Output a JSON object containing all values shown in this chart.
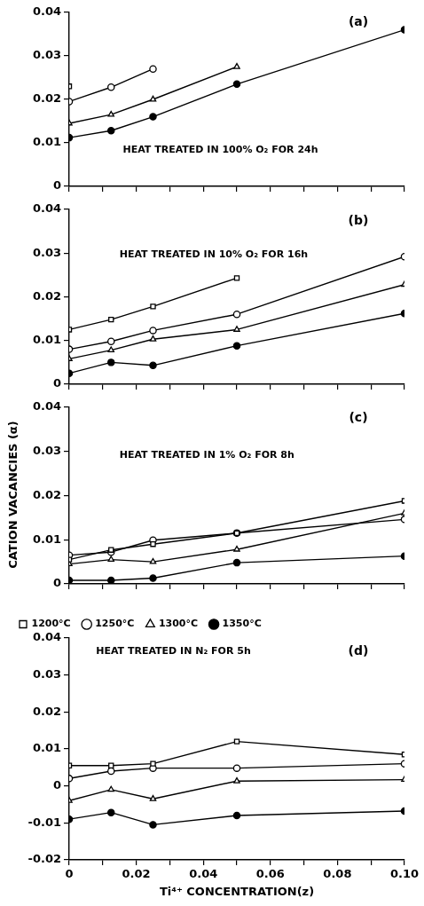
{
  "chart_data": [
    {
      "type": "line",
      "title": "(a)",
      "subtitle": "HEAT TREATED IN 100% O₂ FOR 24h",
      "grid": false,
      "tick_labels": "y",
      "xlim": [
        0,
        0.1
      ],
      "xticks": [
        0,
        {
          "value": 0.01,
          "label": null
        },
        {
          "value": 0.02,
          "label": null
        },
        {
          "value": 0.03,
          "label": null
        },
        {
          "value": 0.04,
          "label": null
        },
        {
          "value": 0.05,
          "label": null
        },
        {
          "value": 0.06,
          "label": null
        },
        {
          "value": 0.07,
          "label": null
        },
        {
          "value": 0.08,
          "label": null
        },
        {
          "value": 0.09,
          "label": null
        },
        {
          "value": 0.1,
          "label": null
        }
      ],
      "ylim": [
        0,
        0.04
      ],
      "yticks": [
        0,
        0.01,
        0.02,
        0.03,
        0.04
      ],
      "series": [
        {
          "color": "#000000",
          "marker": "square",
          "colors": [
            "#ffffff"
          ],
          "x": [
            0
          ],
          "values": [
            0.023
          ]
        },
        {
          "color": "#000000",
          "marker": "circle",
          "colors": [
            "#ffffff",
            "#ffffff",
            "#ffffff"
          ],
          "x": [
            0,
            0.0125,
            0.025
          ],
          "values": [
            0.0195,
            0.0228,
            0.027
          ]
        },
        {
          "color": "#000000",
          "marker": "triangle",
          "colors": [
            "#ffffff",
            "#ffffff",
            "#ffffff",
            "#ffffff"
          ],
          "x": [
            0,
            0.0125,
            0.025,
            0.05
          ],
          "values": [
            0.0145,
            0.0165,
            0.02,
            0.0275
          ]
        },
        {
          "color": "#000000",
          "marker": "circle",
          "colors": [
            "#000000",
            "#000000",
            "#000000",
            "#000000",
            "#000000"
          ],
          "x": [
            0,
            0.0125,
            0.025,
            0.05,
            0.1
          ],
          "values": [
            0.0112,
            0.0128,
            0.016,
            0.0235,
            0.036
          ]
        }
      ]
    },
    {
      "type": "line",
      "title": "(b)",
      "subtitle": "HEAT TREATED IN 10% O₂ FOR 16h",
      "grid": false,
      "tick_labels": "y",
      "xlim": [
        0,
        0.1
      ],
      "xticks": [
        0,
        {
          "value": 0.01,
          "label": null
        },
        {
          "value": 0.02,
          "label": null
        },
        {
          "value": 0.03,
          "label": null
        },
        {
          "value": 0.04,
          "label": null
        },
        {
          "value": 0.05,
          "label": null
        },
        {
          "value": 0.06,
          "label": null
        },
        {
          "value": 0.07,
          "label": null
        },
        {
          "value": 0.08,
          "label": null
        },
        {
          "value": 0.09,
          "label": null
        },
        {
          "value": 0.1,
          "label": null
        }
      ],
      "ylim": [
        0,
        0.04
      ],
      "yticks": [
        0,
        0.01,
        0.02,
        0.03,
        0.04
      ],
      "series": [
        {
          "color": "#000000",
          "marker": "square",
          "colors": [
            "#ffffff",
            "#ffffff",
            "#ffffff",
            "#ffffff"
          ],
          "x": [
            0,
            0.0125,
            0.025,
            0.05
          ],
          "values": [
            0.0125,
            0.0148,
            0.0178,
            0.0243
          ]
        },
        {
          "color": "#000000",
          "marker": "circle",
          "colors": [
            "#ffffff",
            "#ffffff",
            "#ffffff",
            "#ffffff",
            "#ffffff"
          ],
          "x": [
            0,
            0.0125,
            0.025,
            0.05,
            0.1
          ],
          "values": [
            0.008,
            0.0098,
            0.0123,
            0.016,
            0.0292
          ]
        },
        {
          "color": "#000000",
          "marker": "triangle",
          "colors": [
            "#ffffff",
            "#ffffff",
            "#ffffff",
            "#ffffff",
            "#ffffff"
          ],
          "x": [
            0,
            0.0125,
            0.025,
            0.05,
            0.1
          ],
          "values": [
            0.0058,
            0.0078,
            0.0103,
            0.0125,
            0.0228
          ]
        },
        {
          "color": "#000000",
          "marker": "circle",
          "colors": [
            "#000000",
            "#000000",
            "#000000",
            "#000000",
            "#000000"
          ],
          "x": [
            0,
            0.0125,
            0.025,
            0.05,
            0.1
          ],
          "values": [
            0.0025,
            0.005,
            0.0043,
            0.0088,
            0.0162
          ]
        }
      ]
    },
    {
      "type": "line",
      "title": "(c)",
      "subtitle": "HEAT TREATED IN 1% O₂ FOR 8h",
      "ylabel": "CATION VACANCIES (α)",
      "grid": false,
      "tick_labels": "y",
      "xlim": [
        0,
        0.1
      ],
      "xticks": [
        0,
        {
          "value": 0.01,
          "label": null
        },
        {
          "value": 0.02,
          "label": null
        },
        {
          "value": 0.03,
          "label": null
        },
        {
          "value": 0.04,
          "label": null
        },
        {
          "value": 0.05,
          "label": null
        },
        {
          "value": 0.06,
          "label": null
        },
        {
          "value": 0.07,
          "label": null
        },
        {
          "value": 0.08,
          "label": null
        },
        {
          "value": 0.09,
          "label": null
        },
        {
          "value": 0.1,
          "label": null
        }
      ],
      "ylim": [
        0,
        0.04
      ],
      "yticks": [
        0,
        0.01,
        0.02,
        0.03,
        0.04
      ],
      "series": [
        {
          "color": "#000000",
          "marker": "square",
          "colors": [
            "#ffffff",
            "#ffffff",
            "#ffffff",
            "#ffffff",
            "#ffffff"
          ],
          "x": [
            0,
            0.0125,
            0.025,
            0.05,
            0.1
          ],
          "values": [
            0.0055,
            0.0077,
            0.009,
            0.0115,
            0.0188
          ]
        },
        {
          "color": "#000000",
          "marker": "circle",
          "colors": [
            "#ffffff",
            "#ffffff",
            "#ffffff",
            "#ffffff",
            "#ffffff"
          ],
          "x": [
            0,
            0.0125,
            0.025,
            0.05,
            0.1
          ],
          "values": [
            0.0065,
            0.0072,
            0.0099,
            0.0115,
            0.0146
          ]
        },
        {
          "color": "#000000",
          "marker": "triangle",
          "colors": [
            "#ffffff",
            "#ffffff",
            "#ffffff",
            "#ffffff",
            "#ffffff"
          ],
          "x": [
            0,
            0.0125,
            0.025,
            0.05,
            0.1
          ],
          "values": [
            0.0045,
            0.0055,
            0.005,
            0.0078,
            0.016
          ]
        },
        {
          "color": "#000000",
          "marker": "circle",
          "colors": [
            "#000000",
            "#000000",
            "#000000",
            "#000000",
            "#000000"
          ],
          "x": [
            0,
            0.0125,
            0.025,
            0.05,
            0.1
          ],
          "values": [
            0.0008,
            0.0008,
            0.0013,
            0.0048,
            0.0063
          ]
        }
      ]
    },
    {
      "type": "line",
      "title": "(d)",
      "subtitle": "HEAT TREATED IN N₂ FOR 5h",
      "xlabel": "Ti⁴⁺ CONCENTRATION(z)",
      "grid": false,
      "legend": "top left",
      "xlim": [
        0,
        0.1
      ],
      "xticks": [
        0,
        {
          "value": 0.01,
          "label": null
        },
        0.02,
        {
          "value": 0.03,
          "label": null
        },
        0.04,
        {
          "value": 0.05,
          "label": null
        },
        0.06,
        {
          "value": 0.07,
          "label": null
        },
        0.08,
        {
          "value": 0.09,
          "label": null
        },
        {
          "value": 0.1,
          "label": "0.10"
        }
      ],
      "ylim": [
        -0.02,
        0.04
      ],
      "yticks": [
        -0.02,
        -0.01,
        0,
        0.01,
        0.02,
        0.03,
        0.04
      ],
      "series": [
        {
          "name": "1200°C",
          "color": "#000000",
          "marker": "square",
          "colors": [
            "#ffffff",
            "#ffffff",
            "#ffffff",
            "#ffffff",
            "#ffffff"
          ],
          "x": [
            0,
            0.0125,
            0.025,
            0.05,
            0.1
          ],
          "values": [
            0.0055,
            0.0055,
            0.006,
            0.012,
            0.0085
          ]
        },
        {
          "name": "1250°C",
          "color": "#000000",
          "marker": "circle",
          "colors": [
            "#ffffff",
            "#ffffff",
            "#ffffff",
            "#ffffff",
            "#ffffff"
          ],
          "x": [
            0,
            0.0125,
            0.025,
            0.05,
            0.1
          ],
          "values": [
            0.002,
            0.004,
            0.0048,
            0.0048,
            0.006
          ]
        },
        {
          "name": "1300°C",
          "color": "#000000",
          "marker": "triangle",
          "colors": [
            "#ffffff",
            "#ffffff",
            "#ffffff",
            "#ffffff",
            "#ffffff"
          ],
          "x": [
            0,
            0.0125,
            0.025,
            0.05,
            0.1
          ],
          "values": [
            -0.004,
            -0.001,
            -0.0035,
            0.0013,
            0.0017
          ]
        },
        {
          "name": "1350°C",
          "color": "#000000",
          "marker": "circle",
          "colors": [
            "#000000",
            "#000000",
            "#000000",
            "#000000",
            "#000000"
          ],
          "x": [
            0,
            0.0125,
            0.025,
            0.05,
            0.1
          ],
          "values": [
            -0.009,
            -0.0072,
            -0.0105,
            -0.008,
            -0.0068
          ]
        }
      ]
    }
  ]
}
